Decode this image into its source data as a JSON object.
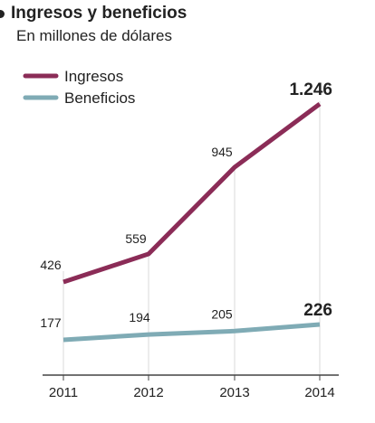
{
  "chart_data": {
    "type": "line",
    "title": "Ingresos y beneficios",
    "subtitle": "En millones de dólares",
    "x": [
      "2011",
      "2012",
      "2013",
      "2014"
    ],
    "series": [
      {
        "name": "Ingresos",
        "color": "#8b2c57",
        "values": [
          426,
          559,
          945,
          1246
        ],
        "labels": [
          "426",
          "559",
          "945",
          "1.246"
        ]
      },
      {
        "name": "Beneficios",
        "color": "#7fabb5",
        "values": [
          177,
          194,
          205,
          226
        ],
        "labels": [
          "177",
          "194",
          "205",
          "226"
        ]
      }
    ],
    "ylim": [
      0,
      1500
    ],
    "grid": "vertical",
    "legend": "top-left",
    "xlabel": "",
    "ylabel": ""
  }
}
